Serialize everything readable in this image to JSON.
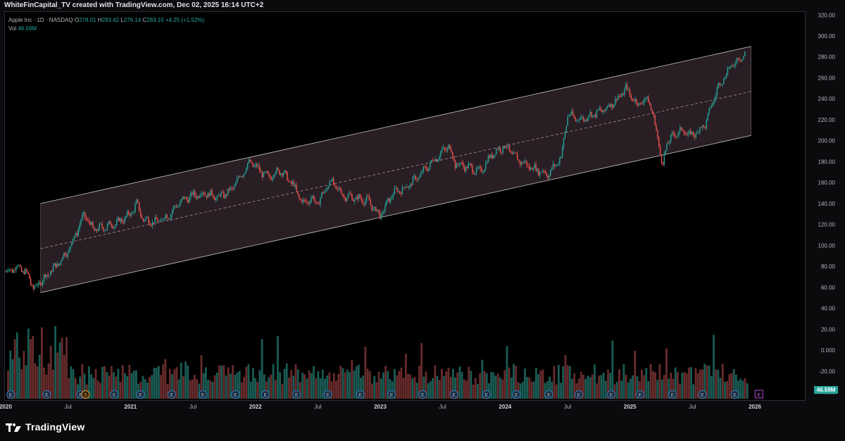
{
  "header": {
    "title": "WhiteFinCapital_TV created with TradingView.com, Dec 02, 2025 16:14 UTC+2"
  },
  "legend": {
    "symbol": "Apple Inc · 1D · NASDAQ",
    "o_label": "O",
    "o_value": "278.01",
    "h_label": "H",
    "h_value": "283.42",
    "l_label": "L",
    "l_value": "276.14",
    "c_label": "C",
    "c_value": "283.10",
    "change": "+4.25 (+1.52%)",
    "vol_label": "Vol",
    "vol_value": "46.59M"
  },
  "volume_badge": "46.59M",
  "brand": {
    "name": "TradingView"
  },
  "colors": {
    "up": "#26a69a",
    "down": "#ef5350",
    "channel_fill": "#2a2026",
    "channel_line": "#c8c8c8",
    "background": "#000000",
    "text": "#b2b5be"
  },
  "chart_data": {
    "type": "candlestick",
    "symbol": "AAPL",
    "ylim": [
      -45,
      320
    ],
    "y_ticks": [
      "320.00",
      "300.00",
      "280.00",
      "260.00",
      "240.00",
      "220.00",
      "200.00",
      "180.00",
      "160.00",
      "140.00",
      "120.00",
      "100.00",
      "80.00",
      "60.00",
      "40.00",
      "20.00",
      "0.000",
      "-20.00",
      "-40.00"
    ],
    "x_ticks": [
      "2020",
      "Jul",
      "2021",
      "Jul",
      "2022",
      "Jul",
      "2023",
      "Jul",
      "2024",
      "Jul",
      "2025",
      "Jul",
      "2026"
    ],
    "x_tick_years": [
      2020.0,
      2020.5,
      2021.0,
      2021.5,
      2022.0,
      2022.5,
      2023.0,
      2023.5,
      2024.0,
      2024.5,
      2025.0,
      2025.5,
      2026.0
    ],
    "price_series": {
      "x": [
        2020.0,
        2020.1,
        2020.19,
        2020.22,
        2020.3,
        2020.4,
        2020.5,
        2020.55,
        2020.63,
        2020.7,
        2020.8,
        2020.9,
        2021.0,
        2021.05,
        2021.1,
        2021.2,
        2021.3,
        2021.4,
        2021.5,
        2021.6,
        2021.7,
        2021.8,
        2021.9,
        2021.96,
        2022.0,
        2022.1,
        2022.2,
        2022.3,
        2022.38,
        2022.45,
        2022.5,
        2022.6,
        2022.7,
        2022.8,
        2022.9,
        2023.0,
        2023.1,
        2023.2,
        2023.3,
        2023.4,
        2023.5,
        2023.55,
        2023.6,
        2023.7,
        2023.8,
        2023.9,
        2024.0,
        2024.1,
        2024.2,
        2024.3,
        2024.35,
        2024.45,
        2024.5,
        2024.6,
        2024.7,
        2024.8,
        2024.9,
        2024.97,
        2025.05,
        2025.15,
        2025.22,
        2025.26,
        2025.3,
        2025.4,
        2025.5,
        2025.6,
        2025.7,
        2025.8,
        2025.92
      ],
      "y": [
        75,
        80,
        70,
        58,
        68,
        80,
        95,
        108,
        130,
        115,
        118,
        122,
        130,
        140,
        125,
        122,
        128,
        142,
        148,
        150,
        146,
        152,
        170,
        180,
        175,
        165,
        172,
        158,
        140,
        145,
        140,
        162,
        148,
        145,
        143,
        128,
        150,
        155,
        165,
        178,
        190,
        195,
        178,
        175,
        170,
        188,
        195,
        182,
        175,
        170,
        168,
        185,
        225,
        220,
        225,
        230,
        240,
        250,
        235,
        240,
        205,
        175,
        200,
        210,
        205,
        215,
        250,
        270,
        283
      ]
    },
    "channel": {
      "x_start": 2020.28,
      "x_end": 2025.97,
      "upper": [
        140,
        290
      ],
      "mid": [
        97,
        247
      ],
      "lower": [
        55,
        205
      ]
    },
    "volume_note": "volume histogram at bottom of pane"
  }
}
